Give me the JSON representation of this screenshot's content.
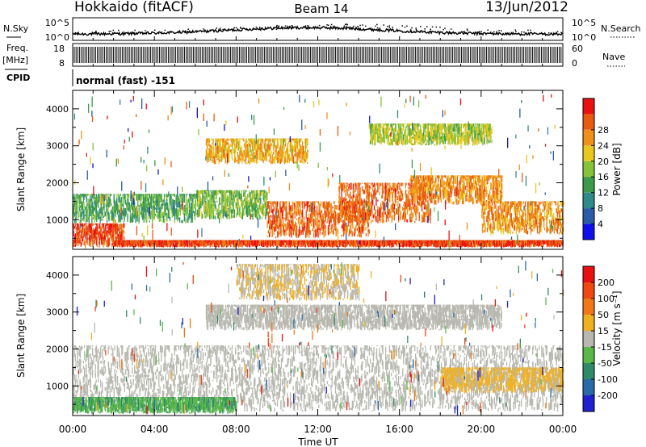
{
  "header": {
    "station": "Hokkaido (fitACF)",
    "beam": "Beam 14",
    "date": "13/Jun/2012"
  },
  "noise_panel": {
    "left_label": "N.Sky",
    "right_label": "N.Search",
    "left_ticks": [
      "10^5",
      "10^0"
    ],
    "right_ticks": [
      "10^5",
      "10^0"
    ]
  },
  "freq_panel": {
    "left_label_1": "Freq.",
    "left_label_2": "[MHz]",
    "right_label": "Nave",
    "left_ticks": [
      "18",
      "8"
    ],
    "right_ticks": [
      "60",
      "0"
    ],
    "freq_range_mhz": [
      8,
      18
    ],
    "nave_range": [
      0,
      60
    ]
  },
  "cpid": {
    "label": "CPID",
    "mode": "normal (fast) -151"
  },
  "x_axis": {
    "title": "Time UT",
    "ticks": [
      "00:00",
      "04:00",
      "08:00",
      "12:00",
      "16:00",
      "20:00",
      "00:00"
    ],
    "range_hours": [
      0,
      24
    ]
  },
  "y_axis": {
    "title": "Slant Range [km]",
    "ticks": [
      "1000",
      "2000",
      "3000",
      "4000"
    ],
    "range_km": [
      200,
      4500
    ]
  },
  "colorbars": [
    {
      "name": "power-colorbar",
      "title": "Power [dB]",
      "labels": [
        "4",
        "8",
        "12",
        "16",
        "20",
        "24",
        "28"
      ],
      "colors": [
        "#1010ee",
        "#2a5aa8",
        "#2f8a8a",
        "#3c9a4a",
        "#86c23a",
        "#e8c81e",
        "#f09018",
        "#e85a10",
        "#e81010"
      ]
    },
    {
      "name": "velocity-colorbar",
      "title": "Velocity [m s⁻¹]",
      "labels": [
        "200",
        "100",
        "50",
        "15",
        "-15",
        "-50",
        "-100",
        "-200"
      ],
      "colors": [
        "#2020d0",
        "#2a6aa8",
        "#2f8a6a",
        "#5ab84a",
        "#b8b8b0",
        "#f0b020",
        "#f07818",
        "#f04810",
        "#e81010"
      ]
    }
  ],
  "chart_data": [
    {
      "type": "heatmap",
      "title": "Power [dB]",
      "xlabel": "Time UT",
      "ylabel": "Slant Range [km]",
      "xlim": [
        0,
        24
      ],
      "ylim": [
        200,
        4500
      ],
      "zlim": [
        0,
        30
      ],
      "regions": [
        {
          "t": [
            0,
            2.5
          ],
          "range_km": [
            250,
            900
          ],
          "value_db": 26
        },
        {
          "t": [
            0,
            6
          ],
          "range_km": [
            900,
            1700
          ],
          "value_db": 12
        },
        {
          "t": [
            6,
            9.5
          ],
          "range_km": [
            1000,
            1800
          ],
          "value_db": 14
        },
        {
          "t": [
            6.5,
            11.5
          ],
          "range_km": [
            2500,
            3200
          ],
          "value_db": 20
        },
        {
          "t": [
            9.5,
            14.5
          ],
          "range_km": [
            500,
            1500
          ],
          "value_db": 24
        },
        {
          "t": [
            13,
            17.5
          ],
          "range_km": [
            900,
            2000
          ],
          "value_db": 24
        },
        {
          "t": [
            16.5,
            21
          ],
          "range_km": [
            1400,
            2200
          ],
          "value_db": 22
        },
        {
          "t": [
            20,
            24
          ],
          "range_km": [
            600,
            1500
          ],
          "value_db": 22
        },
        {
          "t": [
            14.5,
            20.5
          ],
          "range_km": [
            3000,
            3600
          ],
          "value_db": 16
        },
        {
          "t": [
            2,
            24
          ],
          "range_km": [
            250,
            450
          ],
          "value_db": 26
        }
      ]
    },
    {
      "type": "heatmap",
      "title": "Velocity [m s⁻¹]",
      "xlabel": "Time UT",
      "ylabel": "Slant Range [km]",
      "xlim": [
        0,
        24
      ],
      "ylim": [
        200,
        4500
      ],
      "zlim": [
        -200,
        200
      ],
      "regions": [
        {
          "t": [
            0,
            24
          ],
          "range_km": [
            300,
            2100
          ],
          "value_ms": 0
        },
        {
          "t": [
            6.5,
            21
          ],
          "range_km": [
            2500,
            3200
          ],
          "value_ms": 0
        },
        {
          "t": [
            8,
            14
          ],
          "range_km": [
            3300,
            4300
          ],
          "value_ms": 20
        },
        {
          "t": [
            18,
            24
          ],
          "range_km": [
            800,
            1500
          ],
          "value_ms": 30
        },
        {
          "t": [
            0,
            8
          ],
          "range_km": [
            250,
            700
          ],
          "value_ms": -60
        }
      ]
    }
  ]
}
